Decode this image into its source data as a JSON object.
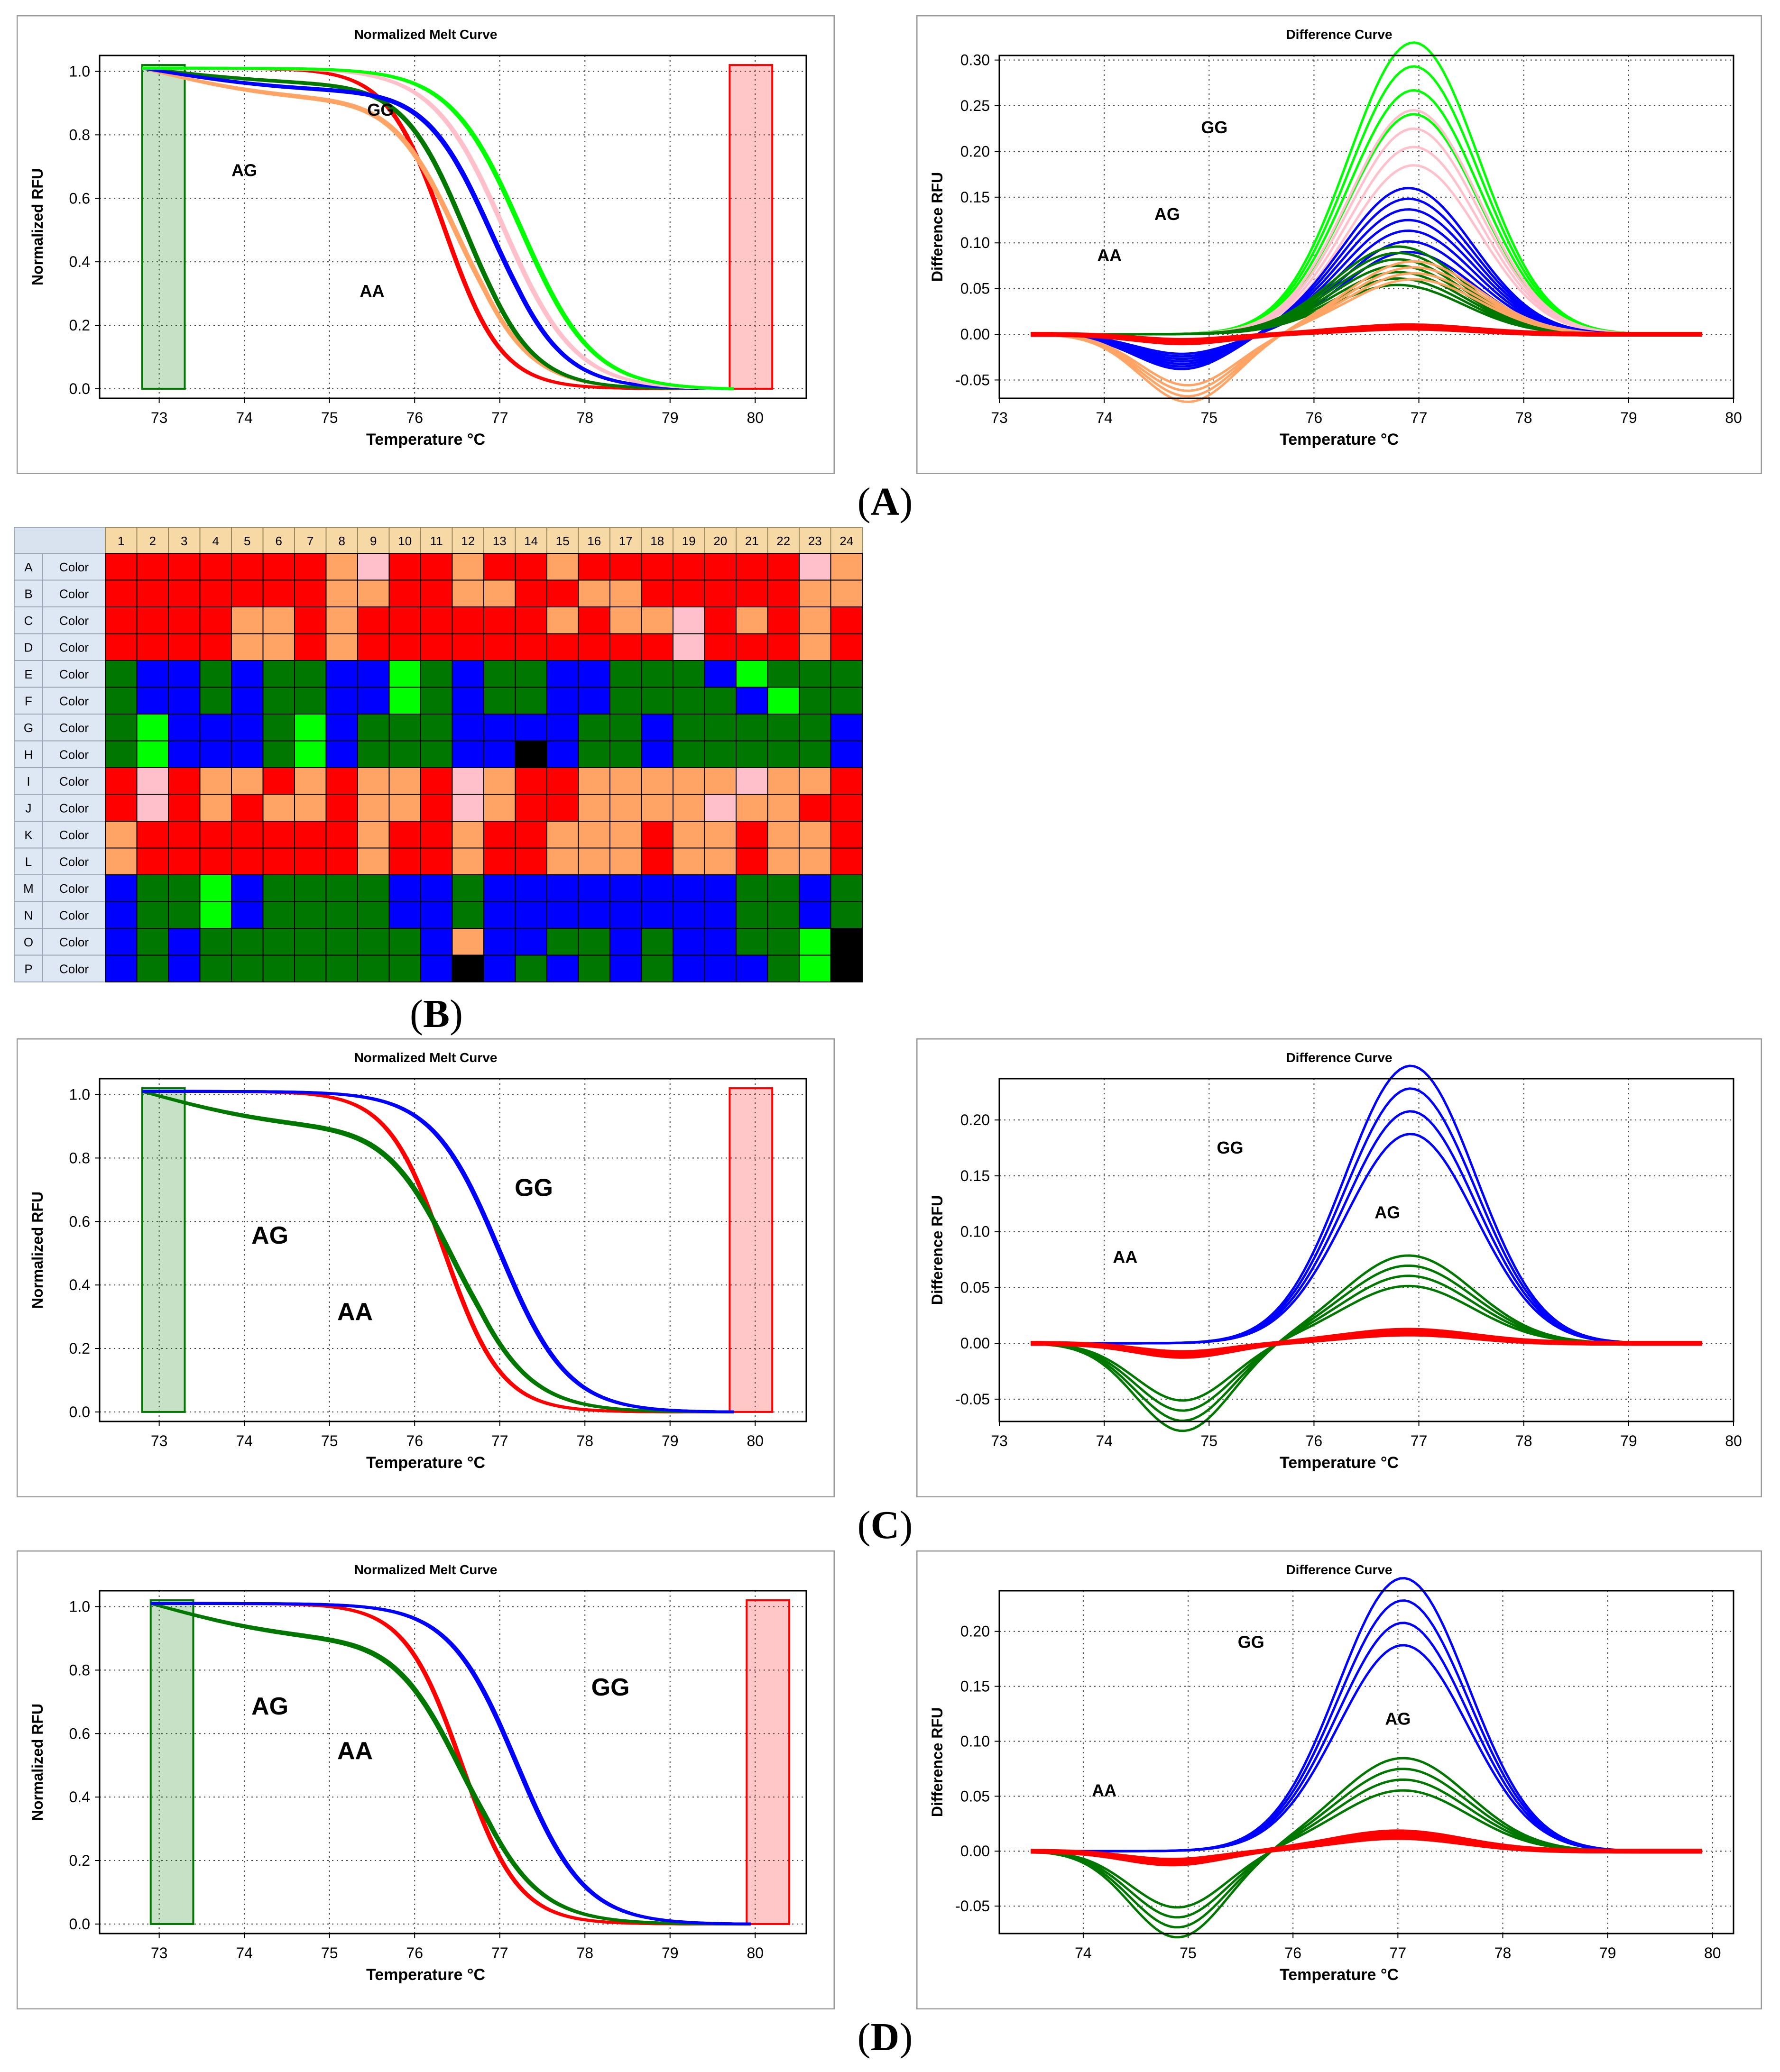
{
  "panel_labels": {
    "A": "A",
    "B": "B",
    "C": "C",
    "D": "D"
  },
  "colors": {
    "red": "#ff0000",
    "orange": "#ffa464",
    "pink": "#ffc0cb",
    "blue": "#0000ff",
    "green": "#007800",
    "lime": "#00ff00",
    "black": "#000000",
    "empty": "#ffffff"
  },
  "chart_data": [
    {
      "id": "A-melt",
      "type": "line",
      "title": "Normalized Melt Curve",
      "xlabel": "Temperature °C",
      "ylabel": "Normalized RFU",
      "xlim": [
        72.3,
        80.6
      ],
      "ylim": [
        -0.03,
        1.05
      ],
      "xticks": [
        "73",
        "74",
        "75",
        "76",
        "77",
        "78",
        "79",
        "80"
      ],
      "yticks": [
        "0.0",
        "0.2",
        "0.4",
        "0.6",
        "0.8",
        "1.0"
      ],
      "regions": [
        {
          "name": "pre-melt",
          "x": [
            72.8,
            73.3
          ],
          "color": "#007800"
        },
        {
          "name": "post-melt",
          "x": [
            79.7,
            80.2
          ],
          "color": "#ff0000"
        }
      ],
      "series": [
        {
          "name": "AA",
          "color": "#ff0000",
          "tm": 76.35,
          "width": 0.8,
          "cp": 0,
          "x": [
            72.8,
            80.2
          ]
        },
        {
          "name": "AG",
          "color": "#ffa464",
          "tm": 76.5,
          "width": 0.95,
          "cp": 0.08,
          "x": [
            72.8,
            80.2
          ]
        },
        {
          "name": "AG",
          "color": "#007800",
          "tm": 76.6,
          "width": 0.9,
          "cp": 0.04,
          "x": [
            72.8,
            80.2
          ]
        },
        {
          "name": "AG",
          "color": "#0000ff",
          "tm": 76.9,
          "width": 0.95,
          "cp": 0.06,
          "x": [
            72.8,
            80.2
          ]
        },
        {
          "name": "GG",
          "color": "#ffc0cb",
          "tm": 77.05,
          "width": 1.0,
          "cp": 0,
          "x": [
            72.8,
            80.2
          ]
        },
        {
          "name": "GG",
          "color": "#00ff00",
          "tm": 77.25,
          "width": 1.0,
          "cp": 0,
          "x": [
            72.8,
            80.2
          ]
        }
      ],
      "annotations": [
        {
          "text": "GG",
          "x": 75.6,
          "y": 0.86
        },
        {
          "text": "AG",
          "x": 74.0,
          "y": 0.67
        },
        {
          "text": "AA",
          "x": 75.5,
          "y": 0.29
        }
      ]
    },
    {
      "id": "A-diff",
      "type": "line",
      "title": "Difference Curve",
      "xlabel": "Temperature  °C",
      "ylabel": "Difference RFU",
      "xlim": [
        73,
        80
      ],
      "ylim": [
        -0.07,
        0.305
      ],
      "xticks": [
        "73",
        "74",
        "75",
        "76",
        "77",
        "78",
        "79",
        "80"
      ],
      "yticks": [
        "-0.05",
        "0.00",
        "0.05",
        "0.10",
        "0.15",
        "0.20",
        "0.25",
        "0.30"
      ],
      "series": [
        {
          "name": "GG",
          "color": "#00ff00",
          "peak": 0.28,
          "peak_x": 76.95,
          "trough": 0,
          "width": 0.02
        },
        {
          "name": "GG",
          "color": "#ffc0cb",
          "peak": 0.215,
          "peak_x": 76.95,
          "trough": 0,
          "width": 0.02
        },
        {
          "name": "AG",
          "color": "#0000ff",
          "peak": 0.125,
          "peak_x": 76.9,
          "trough": -0.03,
          "width": 0.04
        },
        {
          "name": "AG",
          "color": "#007800",
          "peak": 0.075,
          "peak_x": 76.8,
          "trough": 0,
          "width": 0.04
        },
        {
          "name": "AG",
          "color": "#ffa464",
          "peak": 0.07,
          "peak_x": 76.95,
          "trough": -0.065,
          "width": 0.02
        },
        {
          "name": "AA",
          "color": "#ff0000",
          "peak": 0.008,
          "peak_x": 76.9,
          "trough": -0.008,
          "width": 0.025
        }
      ],
      "annotations": [
        {
          "text": "GG",
          "x": 75.05,
          "y": 0.22
        },
        {
          "text": "AG",
          "x": 74.6,
          "y": 0.125
        },
        {
          "text": "AA",
          "x": 74.05,
          "y": 0.08
        }
      ]
    },
    {
      "id": "C-melt",
      "type": "line",
      "title": "Normalized Melt Curve",
      "xlabel": "Temperature  °C",
      "ylabel": "Normalized RFU",
      "xlim": [
        72.3,
        80.6
      ],
      "ylim": [
        -0.03,
        1.05
      ],
      "xticks": [
        "73",
        "74",
        "75",
        "76",
        "77",
        "78",
        "79",
        "80"
      ],
      "yticks": [
        "0.0",
        "0.2",
        "0.4",
        "0.6",
        "0.8",
        "1.0"
      ],
      "regions": [
        {
          "name": "pre-melt",
          "x": [
            72.8,
            73.3
          ],
          "color": "#007800"
        },
        {
          "name": "post-melt",
          "x": [
            79.7,
            80.2
          ],
          "color": "#ff0000"
        }
      ],
      "series": [
        {
          "name": "AA",
          "color": "#ff0000",
          "tm": 76.35,
          "width": 0.8,
          "cp": 0
        },
        {
          "name": "AG",
          "color": "#007800",
          "tm": 76.45,
          "width": 1.0,
          "cp": 0.09
        },
        {
          "name": "GG",
          "color": "#0000ff",
          "tm": 77.0,
          "width": 0.95,
          "cp": 0
        }
      ],
      "annotations": [
        {
          "text": "GG",
          "x": 77.4,
          "y": 0.68
        },
        {
          "text": "AG",
          "x": 74.3,
          "y": 0.53
        },
        {
          "text": "AA",
          "x": 75.3,
          "y": 0.29
        }
      ]
    },
    {
      "id": "C-diff",
      "type": "line",
      "title": "Difference Curve",
      "xlabel": "Temperature  °C",
      "ylabel": "Difference RFU",
      "xlim": [
        73,
        80
      ],
      "ylim": [
        -0.07,
        0.237
      ],
      "xticks": [
        "73",
        "74",
        "75",
        "76",
        "77",
        "78",
        "79",
        "80"
      ],
      "yticks": [
        "-0.05",
        "0.00",
        "0.05",
        "0.10",
        "0.15",
        "0.20"
      ],
      "series": [
        {
          "name": "GG",
          "color": "#0000ff",
          "peak": 0.218,
          "peak_x": 76.92,
          "trough": 0,
          "width": 0.02
        },
        {
          "name": "AG",
          "color": "#007800",
          "peak": 0.065,
          "peak_x": 76.9,
          "trough": -0.065,
          "width": 0.03
        },
        {
          "name": "AA",
          "color": "#ff0000",
          "peak": 0.01,
          "peak_x": 76.9,
          "trough": -0.01,
          "width": 0.025
        }
      ],
      "annotations": [
        {
          "text": "GG",
          "x": 75.2,
          "y": 0.17
        },
        {
          "text": "AG",
          "x": 76.7,
          "y": 0.112
        },
        {
          "text": "AA",
          "x": 74.2,
          "y": 0.072
        }
      ]
    },
    {
      "id": "D-melt",
      "type": "line",
      "title": "Normalized Melt Curve",
      "xlabel": "Temperature °C",
      "ylabel": "Normalized RFU",
      "xlim": [
        72.3,
        80.6
      ],
      "ylim": [
        -0.03,
        1.05
      ],
      "xticks": [
        "73",
        "74",
        "75",
        "76",
        "77",
        "78",
        "79",
        "80"
      ],
      "yticks": [
        "0.0",
        "0.2",
        "0.4",
        "0.6",
        "0.8",
        "1.0"
      ],
      "regions": [
        {
          "name": "pre-melt",
          "x": [
            72.9,
            73.4
          ],
          "color": "#007800"
        },
        {
          "name": "post-melt",
          "x": [
            79.9,
            80.4
          ],
          "color": "#ff0000"
        }
      ],
      "series": [
        {
          "name": "AA",
          "color": "#ff0000",
          "tm": 76.55,
          "width": 0.8,
          "cp": 0
        },
        {
          "name": "AG",
          "color": "#007800",
          "tm": 76.55,
          "width": 1.0,
          "cp": 0.09
        },
        {
          "name": "GG",
          "color": "#0000ff",
          "tm": 77.2,
          "width": 0.95,
          "cp": 0
        }
      ],
      "annotations": [
        {
          "text": "GG",
          "x": 78.3,
          "y": 0.72
        },
        {
          "text": "AG",
          "x": 74.3,
          "y": 0.66
        },
        {
          "text": "AA",
          "x": 75.3,
          "y": 0.52
        }
      ]
    },
    {
      "id": "D-diff",
      "type": "line",
      "title": "Difference Curve",
      "xlabel": "Temperature °C",
      "ylabel": "Difference RFU",
      "xlim": [
        73.2,
        80.2
      ],
      "ylim": [
        -0.075,
        0.237
      ],
      "xticks": [
        "74",
        "75",
        "76",
        "77",
        "78",
        "79",
        "80"
      ],
      "yticks": [
        "-0.05",
        "0.00",
        "0.05",
        "0.10",
        "0.15",
        "0.20"
      ],
      "series": [
        {
          "name": "GG",
          "color": "#0000ff",
          "peak": 0.218,
          "peak_x": 77.05,
          "trough": 0,
          "width": 0.02
        },
        {
          "name": "AG",
          "color": "#007800",
          "peak": 0.07,
          "peak_x": 77.05,
          "trough": -0.065,
          "width": 0.03
        },
        {
          "name": "AA",
          "color": "#ff0000",
          "peak": 0.015,
          "peak_x": 77.0,
          "trough": -0.01,
          "width": 0.025
        }
      ],
      "annotations": [
        {
          "text": "GG",
          "x": 75.6,
          "y": 0.185
        },
        {
          "text": "AG",
          "x": 77.0,
          "y": 0.115
        },
        {
          "text": "AA",
          "x": 74.2,
          "y": 0.05
        }
      ]
    }
  ],
  "plate": {
    "columns": [
      "1",
      "2",
      "3",
      "4",
      "5",
      "6",
      "7",
      "8",
      "9",
      "10",
      "11",
      "12",
      "13",
      "14",
      "15",
      "16",
      "17",
      "18",
      "19",
      "20",
      "21",
      "22",
      "23",
      "24"
    ],
    "cell_label": "Color",
    "rows": [
      {
        "label": "A",
        "cells": "RRRRRRROPRRORRORRRRRRRPO"
      },
      {
        "label": "B",
        "cells": "RRRRRRROORROORROORRRRROO"
      },
      {
        "label": "C",
        "cells": "RRRROORORRRRRROROOPROROR"
      },
      {
        "label": "D",
        "cells": "RRRROORORRRRRRRRRRPRRROR"
      },
      {
        "label": "E",
        "cells": "GBBGBGGBBLGBGGBBGGGBLGGG"
      },
      {
        "label": "F",
        "cells": "GBBGBGGBBLGBGGBBGGGGBLGG"
      },
      {
        "label": "G",
        "cells": "GLBBBGLBGGGBBBBGGBGGGGGB"
      },
      {
        "label": "H",
        "cells": "GLBBBGLBGGGBBKBGGBGGGGGB"
      },
      {
        "label": "I",
        "cells": "RPROOROROORPORROOOOOPOOR"
      },
      {
        "label": "J",
        "cells": "RPROROOROORPORROOOOPOORR"
      },
      {
        "label": "K",
        "cells": "ORRRRRRRORRORROOOROOROOR"
      },
      {
        "label": "L",
        "cells": "ORRRRRRRORRORROOOROOROOR"
      },
      {
        "label": "M",
        "cells": "BGGLBGGGGBBGBBBBBBBBGGBG"
      },
      {
        "label": "N",
        "cells": "BGGLBGGGGBBGBBBBBBBBGGBG"
      },
      {
        "label": "O",
        "cells": "BGBGGGGGGGBOBBGGBGBBGGLK"
      },
      {
        "label": "P",
        "cells": "BGBGGGGGGGBKBGBGBGBBBGLK"
      }
    ]
  }
}
